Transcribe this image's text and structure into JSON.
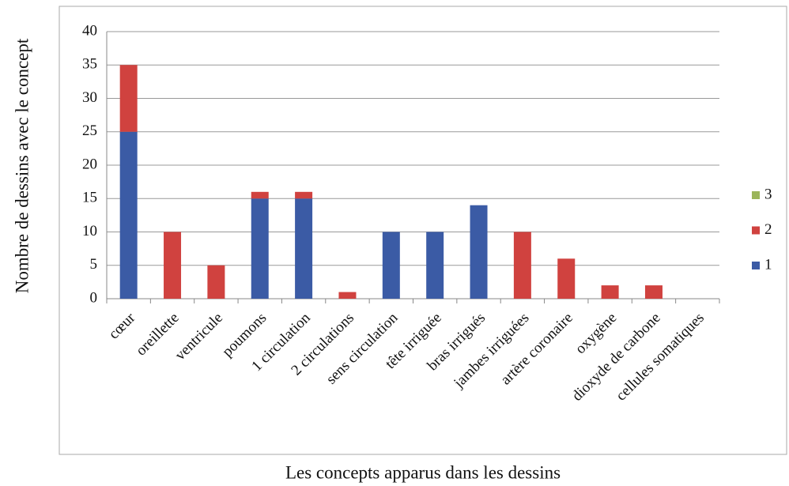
{
  "chart_data": {
    "type": "stacked_bar",
    "ylabel": "Nombre de dessins avec le concept",
    "xlabel": "Les concepts apparus dans les dessins",
    "categories": [
      "cœur",
      "oreillette",
      "ventricule",
      "poumons",
      "1 circulation",
      "2 circulations",
      "sens circulation",
      "tête irriguée",
      "bras irrigués",
      "jambes irriguées",
      "artère coronaire",
      "oxygène",
      "dioxyde de carbone",
      "cellules somatiques"
    ],
    "series": [
      {
        "name": "1",
        "color": "#3b5ba5",
        "values": [
          25,
          0,
          0,
          15,
          15,
          0,
          10,
          10,
          14,
          0,
          0,
          0,
          0,
          0
        ]
      },
      {
        "name": "2",
        "color": "#d0423f",
        "values": [
          10,
          10,
          5,
          1,
          1,
          1,
          0,
          0,
          0,
          10,
          6,
          2,
          2,
          0
        ]
      },
      {
        "name": "3",
        "color": "#9bb55a",
        "values": [
          0,
          0,
          0,
          0,
          0,
          0,
          0,
          0,
          0,
          0,
          0,
          0,
          0,
          0
        ]
      }
    ],
    "ylim": [
      0,
      40
    ],
    "yticks": [
      0,
      5,
      10,
      15,
      20,
      25,
      30,
      35,
      40
    ],
    "grid": true,
    "legend": "right"
  }
}
